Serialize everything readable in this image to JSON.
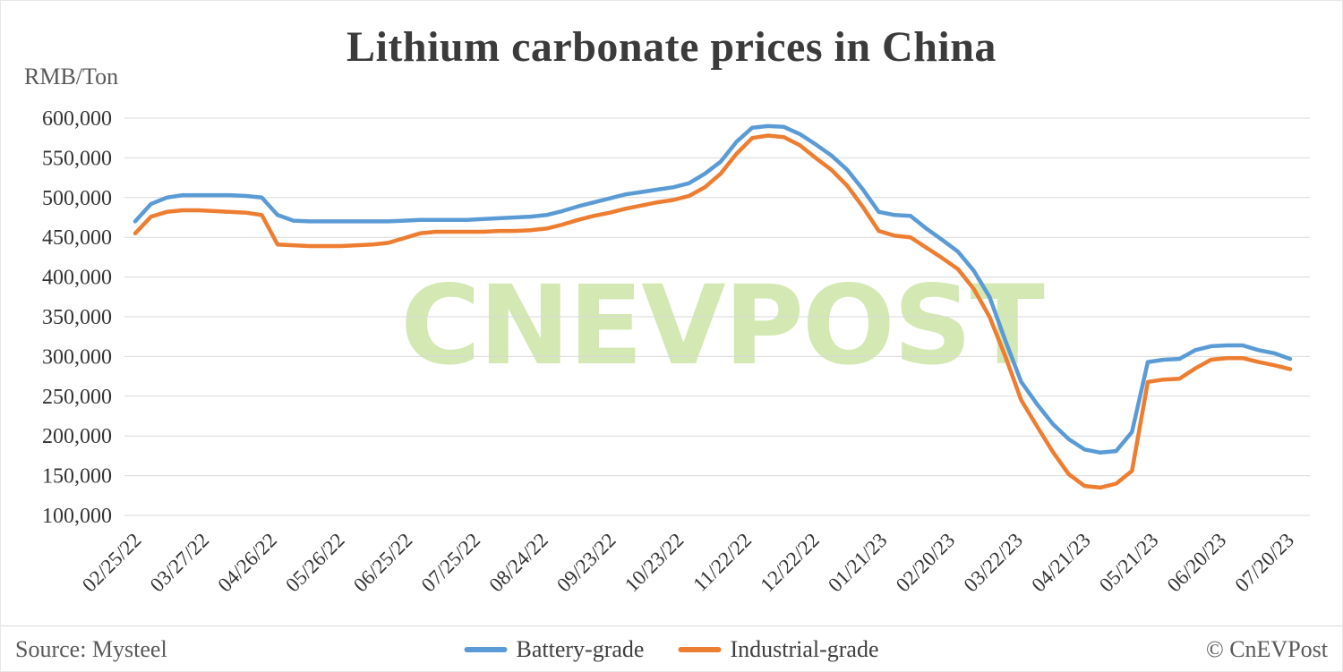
{
  "page": {
    "title": "Lithium carbonate prices in China",
    "y_axis_unit": "RMB/Ton",
    "watermark": "CNEVPOST",
    "source": "Source: Mysteel",
    "copyright": "© CnEVPost"
  },
  "legend": [
    {
      "label": "Battery-grade",
      "color": "#5B9BD5"
    },
    {
      "label": "Industrial-grade",
      "color": "#ED7D31"
    }
  ],
  "colors": {
    "battery_grade": "#5B9BD5",
    "industrial_grade": "#ED7D31",
    "gridline": "#D9D9D9",
    "axis_text": "#333333",
    "watermark_green": "#C9E39F"
  },
  "chart_data": {
    "type": "line",
    "title": "Lithium carbonate prices in China",
    "ylabel": "RMB/Ton",
    "xlabel": "",
    "ylim": [
      100000,
      600000
    ],
    "y_tick_step": 50000,
    "grid": true,
    "legend_position": "bottom",
    "x_tick_labels": [
      "02/25/22",
      "03/27/22",
      "04/26/22",
      "05/26/22",
      "06/25/22",
      "07/25/22",
      "08/24/22",
      "09/23/22",
      "10/23/22",
      "11/22/22",
      "12/22/22",
      "01/21/23",
      "02/20/23",
      "03/22/23",
      "04/21/23",
      "05/21/23",
      "06/20/23",
      "07/20/23"
    ],
    "x_tick_step_days": 30,
    "x_step_days": 7,
    "x_total_days": 511,
    "series": [
      {
        "name": "Battery-grade",
        "color": "#5B9BD5",
        "values": [
          470000,
          492000,
          500000,
          503000,
          503000,
          503000,
          503000,
          502000,
          500000,
          478000,
          471000,
          470000,
          470000,
          470000,
          470000,
          470000,
          470000,
          471000,
          472000,
          472000,
          472000,
          472000,
          473000,
          474000,
          475000,
          476000,
          478000,
          483000,
          489000,
          494000,
          499000,
          504000,
          507000,
          510000,
          513000,
          518000,
          530000,
          545000,
          570000,
          588000,
          590000,
          589000,
          580000,
          567000,
          553000,
          535000,
          510000,
          482000,
          478000,
          477000,
          461000,
          447000,
          432000,
          408000,
          375000,
          320000,
          268000,
          240000,
          215000,
          196000,
          183000,
          179000,
          181000,
          205000,
          293000,
          296000,
          297000,
          308000,
          313000,
          314000,
          314000,
          308000,
          304000,
          297000
        ]
      },
      {
        "name": "Industrial-grade",
        "color": "#ED7D31",
        "values": [
          455000,
          476000,
          482000,
          484000,
          484000,
          483000,
          482000,
          481000,
          478000,
          441000,
          440000,
          439000,
          439000,
          439000,
          440000,
          441000,
          443000,
          449000,
          455000,
          457000,
          457000,
          457000,
          457000,
          458000,
          458000,
          459000,
          461000,
          466000,
          472000,
          477000,
          481000,
          486000,
          490000,
          494000,
          497000,
          502000,
          513000,
          530000,
          555000,
          575000,
          578000,
          576000,
          566000,
          550000,
          535000,
          515000,
          488000,
          458000,
          452000,
          450000,
          437000,
          424000,
          410000,
          385000,
          350000,
          300000,
          245000,
          212000,
          180000,
          152000,
          137000,
          135000,
          140000,
          156000,
          268000,
          271000,
          272000,
          285000,
          296000,
          298000,
          298000,
          293000,
          289000,
          284000
        ]
      }
    ]
  }
}
